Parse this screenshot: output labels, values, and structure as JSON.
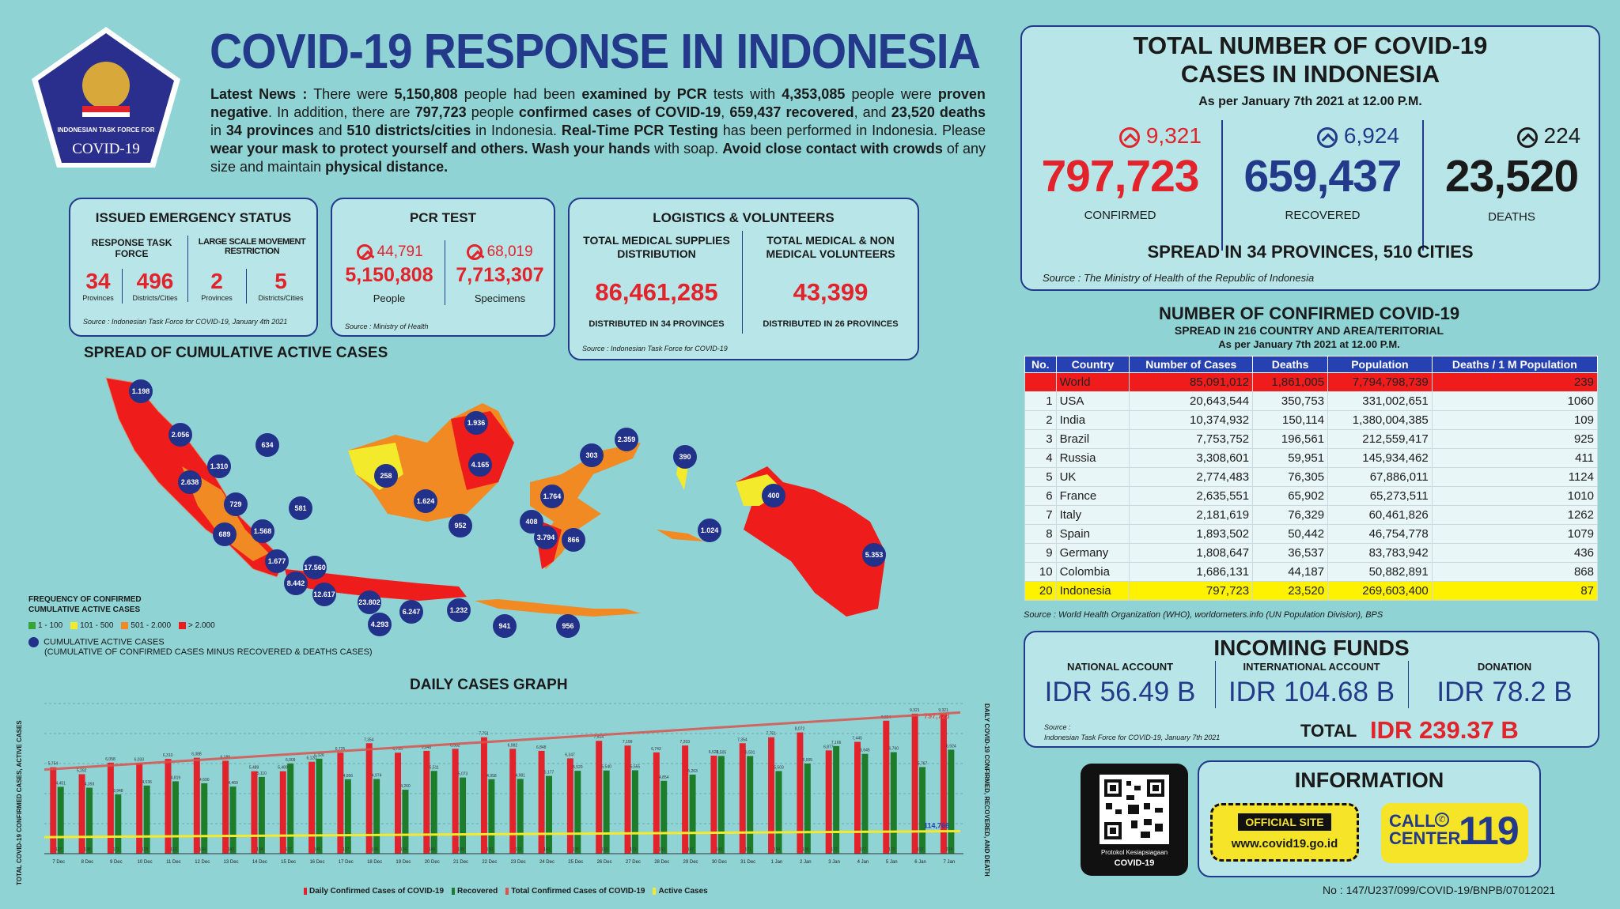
{
  "header": {
    "title": "COVID-19 RESPONSE IN INDONESIA",
    "logo_text1": "INDONESIAN TASK FORCE FOR",
    "logo_text2": "COVID-19",
    "news_label": "Latest News :",
    "news_p1": "There were",
    "news_v1": "5,150,808",
    "news_p2": "people had been",
    "news_v2": "examined by PCR",
    "news_p3": "tests with",
    "news_v3": "4,353,085",
    "news_p4": "people were",
    "news_v4": "proven negative",
    "news_p5": ". In addition, there are",
    "news_v5": "797,723",
    "news_p6": "people",
    "news_v6": "confirmed cases of COVID-19",
    "news_p7": ",",
    "news_v7": "659,437 recovered",
    "news_p8": ", and",
    "news_v8": "23,520 deaths",
    "news_p9": "in",
    "news_v9": "34 provinces",
    "news_p10": "and",
    "news_v10": "510 districts/cities",
    "news_p11": "in Indonesia.",
    "news_v11": "Real-Time PCR Testing",
    "news_p12": "has been performed in Indonesia. Please",
    "news_v12": "wear your mask to protect yourself and others. Wash your hands",
    "news_p13": "with soap.",
    "news_v13": "Avoid close contact with crowds",
    "news_p14": "of any size and maintain",
    "news_v14": "physical distance."
  },
  "emergency": {
    "title": "ISSUED EMERGENCY STATUS",
    "col1_label": "RESPONSE TASK FORCE",
    "col2_label": "LARGE SCALE MOVEMENT RESTRICTION",
    "v1": "34",
    "l1": "Provinces",
    "v2": "496",
    "l2": "Districts/Cities",
    "v3": "2",
    "l3": "Provinces",
    "v4": "5",
    "l4": "Districts/Cities",
    "source": "Source : Indonesian Task Force for COVID-19, January 4th 2021"
  },
  "pcr": {
    "title": "PCR TEST",
    "inc1": "44,791",
    "v1": "5,150,808",
    "l1": "People",
    "inc2": "68,019",
    "v2": "7,713,307",
    "l2": "Specimens",
    "source": "Source : Ministry of Health"
  },
  "logistics": {
    "title": "LOGISTICS & VOLUNTEERS",
    "h1": "TOTAL MEDICAL SUPPLIES DISTRIBUTION",
    "v1": "86,461,285",
    "f1": "DISTRIBUTED IN 34 PROVINCES",
    "h2": "TOTAL MEDICAL & NON MEDICAL VOLUNTEERS",
    "v2": "43,399",
    "f2": "DISTRIBUTED IN 26 PROVINCES",
    "source": "Source : Indonesian Task Force for COVID-19"
  },
  "totals": {
    "title1": "TOTAL NUMBER OF COVID-19",
    "title2": "CASES IN INDONESIA",
    "asof": "As per January 7th 2021 at 12.00 P.M.",
    "conf_inc": "9,321",
    "conf": "797,723",
    "conf_l": "CONFIRMED",
    "rec_inc": "6,924",
    "rec": "659,437",
    "rec_l": "RECOVERED",
    "death_inc": "224",
    "death": "23,520",
    "death_l": "DEATHS",
    "spread": "SPREAD IN 34 PROVINCES, 510 CITIES",
    "source": "Source : The Ministry of Health of the Republic of Indonesia",
    "colors": {
      "confirmed": "#e3232b",
      "recovered": "#2541b2",
      "deaths": "#111111"
    }
  },
  "world": {
    "title": "NUMBER OF CONFIRMED COVID-19",
    "sub1": "SPREAD IN 216 COUNTRY AND AREA/TERITORIAL",
    "sub2": "As per January 7th 2021 at 12.00 P.M.",
    "headers": [
      "No.",
      "Country",
      "Number of Cases",
      "Deaths",
      "Population",
      "Deaths / 1 M Population"
    ],
    "rows": [
      [
        "",
        "World",
        "85,091,012",
        "1,861,005",
        "7,794,798,739",
        "239"
      ],
      [
        "1",
        "USA",
        "20,643,544",
        "350,753",
        "331,002,651",
        "1060"
      ],
      [
        "2",
        "India",
        "10,374,932",
        "150,114",
        "1,380,004,385",
        "109"
      ],
      [
        "3",
        "Brazil",
        "7,753,752",
        "196,561",
        "212,559,417",
        "925"
      ],
      [
        "4",
        "Russia",
        "3,308,601",
        "59,951",
        "145,934,462",
        "411"
      ],
      [
        "5",
        "UK",
        "2,774,483",
        "76,305",
        "67,886,011",
        "1124"
      ],
      [
        "6",
        "France",
        "2,635,551",
        "65,902",
        "65,273,511",
        "1010"
      ],
      [
        "7",
        "Italy",
        "2,181,619",
        "76,329",
        "60,461,826",
        "1262"
      ],
      [
        "8",
        "Spain",
        "1,893,502",
        "50,442",
        "46,754,778",
        "1079"
      ],
      [
        "9",
        "Germany",
        "1,808,647",
        "36,537",
        "83,783,942",
        "436"
      ],
      [
        "10",
        "Colombia",
        "1,686,131",
        "44,187",
        "50,882,891",
        "868"
      ],
      [
        "20",
        "Indonesia",
        "797,723",
        "23,520",
        "269,603,400",
        "87"
      ]
    ],
    "source": "Source : World Health Organization (WHO), worldometers.info (UN Population Division), BPS"
  },
  "funds": {
    "title": "INCOMING FUNDS",
    "l1": "NATIONAL ACCOUNT",
    "v1": "IDR 56.49 B",
    "l2": "INTERNATIONAL ACCOUNT",
    "v2": "IDR 104.68 B",
    "l3": "DONATION",
    "v3": "IDR 78.2 B",
    "source1": "Source :",
    "source2": "Indonesian Task Force for COVID-19, January 7th 2021",
    "total_label": "TOTAL",
    "total": "IDR 239.37 B"
  },
  "info": {
    "qr_l1": "Protokol Kesiapsiagaan",
    "qr_l2": "COVID-19",
    "title": "INFORMATION",
    "site_label": "OFFICIAL SITE",
    "site": "www.covid19.go.id",
    "call_l1": "CALL",
    "call_l2": "CENTER",
    "call_num": "119",
    "ref": "No : 147/U237/099/COVID-19/BNPB/07012021"
  },
  "map": {
    "title": "SPREAD OF CUMULATIVE ACTIVE CASES",
    "legend_title1": "FREQUENCY OF CONFIRMED",
    "legend_title2": "CUMULATIVE ACTIVE CASES",
    "legend": [
      {
        "label": "1 - 100",
        "color": "#3aa335"
      },
      {
        "label": "101 - 500",
        "color": "#f2ea2a"
      },
      {
        "label": "501 - 2.000",
        "color": "#f18a22"
      },
      {
        "label": "> 2.000",
        "color": "#ef1c1c"
      }
    ],
    "dot_label": "CUMULATIVE ACTIVE CASES",
    "dot_sub": "(CUMULATIVE OF CONFIRMED CASES MINUS RECOVERED & DEATHS CASES)",
    "markers": [
      "1.198",
      "2.056",
      "1.310",
      "2.638",
      "729",
      "689",
      "1.568",
      "1.677",
      "17.560",
      "8.442",
      "12.617",
      "23.802",
      "4.293",
      "6.247",
      "1.232",
      "941",
      "956",
      "258",
      "1.624",
      "952",
      "1.936",
      "4.165",
      "634",
      "581",
      "303",
      "2.359",
      "390",
      "1.764",
      "408",
      "3.794",
      "866",
      "1.024",
      "400",
      "5.353"
    ]
  },
  "graph": {
    "title": "DAILY CASES GRAPH",
    "ylabel_left": "TOTAL COVID-19 CONFIRMED CASES, ACTIVE CASES",
    "ylabel_right": "DAILY COVID-19 CONFIRMED, RECOVERED, AND DEATH",
    "end_total": "797,723",
    "end_active": "114,766",
    "legend": [
      "Daily Confirmed Cases of COVID-19",
      "Recovered",
      "Total Confirmed Cases of COVID-19",
      "Active Cases"
    ]
  },
  "chart_data": {
    "type": "bar",
    "title": "DAILY CASES GRAPH",
    "categories": [
      "7 Dec",
      "8 Dec",
      "9 Dec",
      "10 Dec",
      "11 Dec",
      "12 Dec",
      "13 Dec",
      "14 Dec",
      "15 Dec",
      "16 Dec",
      "17 Dec",
      "18 Dec",
      "19 Dec",
      "20 Dec",
      "21 Dec",
      "22 Dec",
      "23 Dec",
      "24 Dec",
      "25 Dec",
      "26 Dec",
      "27 Dec",
      "28 Dec",
      "29 Dec",
      "30 Dec",
      "31 Dec",
      "1 Jan",
      "2 Jan",
      "3 Jan",
      "4 Jan",
      "5 Jan",
      "6 Jan",
      "7 Jan"
    ],
    "series": [
      {
        "name": "Daily Confirmed Cases of COVID-19",
        "values": [
          5754,
          5292,
          6058,
          6033,
          6310,
          6388,
          6189,
          5489,
          5489,
          6120,
          6725,
          7354,
          6725,
          6848,
          6982,
          7751,
          6982,
          6848,
          6347,
          7514,
          7199,
          6743,
          7203,
          6528,
          7354,
          7751,
          8072,
          6877,
          7445,
          8854,
          9321,
          9321
        ]
      },
      {
        "name": "Recovered",
        "values": [
          4451,
          4393,
          3948,
          4536,
          4819,
          4690,
          4469,
          5110,
          6009,
          6326,
          4956,
          4974,
          4260,
          5511,
          5073,
          4958,
          4981,
          5177,
          5520,
          5540,
          5555,
          4854,
          5263,
          6505,
          6501,
          5503,
          6005,
          7166,
          6645,
          6760,
          5767,
          6924
        ]
      },
      {
        "name": "Deaths",
        "values": [
          127,
          138,
          171,
          155,
          113,
          166,
          142,
          134,
          137,
          145,
          137,
          166,
          124,
          140,
          199,
          150,
          172,
          141,
          135,
          150,
          179,
          151,
          147,
          141,
          171,
          154,
          196,
          172,
          177,
          170,
          187,
          224
        ]
      }
    ],
    "colors": {
      "daily": "#e3232b",
      "recovered": "#1e7d2a",
      "total_line": "#d9534f",
      "active_line": "#f2ea2a"
    }
  }
}
